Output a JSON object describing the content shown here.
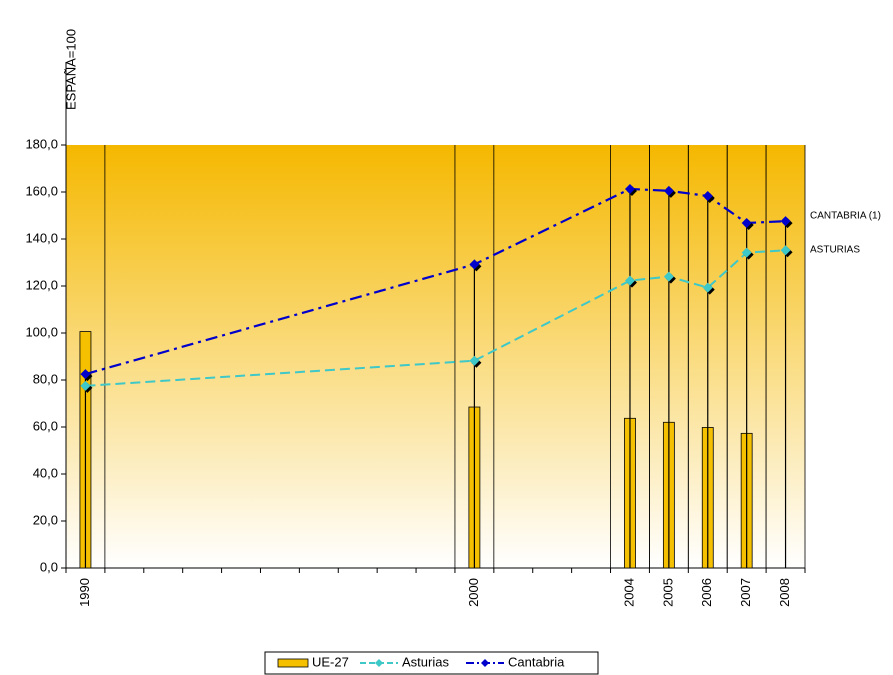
{
  "chart_data": {
    "type": "bar-line",
    "y_label": "ESPAÑA=100",
    "annotations": [
      "CANTABRIA (1)",
      "ASTURIAS"
    ],
    "x": [
      1990,
      2000,
      2004,
      2005,
      2006,
      2007,
      2008
    ],
    "xlim": [
      1989.5,
      2008.5
    ],
    "xticks": [
      1990,
      2000,
      2004,
      2005,
      2006,
      2007,
      2008
    ],
    "ylim": [
      0,
      180
    ],
    "yticks": [
      {
        "value": 0,
        "label": "0,0"
      },
      {
        "value": 20,
        "label": "20,0"
      },
      {
        "value": 40,
        "label": "40,0"
      },
      {
        "value": 60,
        "label": "60,0"
      },
      {
        "value": 80,
        "label": "80,0"
      },
      {
        "value": 100,
        "label": "100,0"
      },
      {
        "value": 120,
        "label": "120,0"
      },
      {
        "value": 140,
        "label": "140,0"
      },
      {
        "value": 160,
        "label": "160,0"
      },
      {
        "value": 180,
        "label": "180,0"
      }
    ],
    "series": [
      {
        "name": "UE-27",
        "type": "bar",
        "color": "#f5c000",
        "values": [
          100.6,
          68.5,
          63.7,
          62.0,
          59.8,
          57.3,
          null
        ]
      },
      {
        "name": "Asturias",
        "type": "line",
        "color": "#3ec8c8",
        "values": [
          77.5,
          88.2,
          122.3,
          124.0,
          119.3,
          134.2,
          135.2
        ]
      },
      {
        "name": "Cantabria",
        "type": "line",
        "color": "#0000cc",
        "values": [
          82.5,
          129.2,
          161.3,
          160.5,
          158.3,
          146.8,
          147.6
        ]
      }
    ]
  }
}
